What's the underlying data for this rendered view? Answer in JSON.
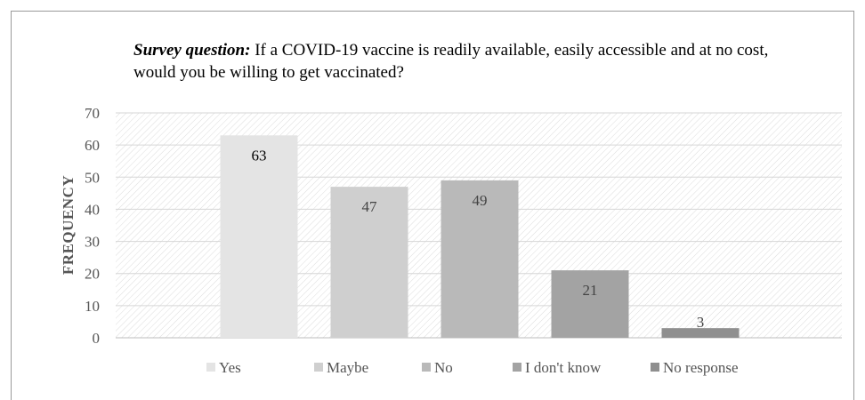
{
  "question": {
    "lead": "Survey question:",
    "text": " If a COVID-19 vaccine is readily available, easily accessible and at no cost, would you be willing to get vaccinated?"
  },
  "chart_data": {
    "type": "bar",
    "categories": [
      "Yes",
      "Maybe",
      "No",
      "I don't know",
      "No response"
    ],
    "values": [
      63,
      47,
      49,
      21,
      3
    ],
    "ylabel": "FREQUENCY",
    "xlabel": "",
    "ylim": [
      0,
      70
    ],
    "yticks": [
      0,
      10,
      20,
      30,
      40,
      50,
      60,
      70
    ],
    "grid": true,
    "legend": "bottom",
    "colors": [
      "#e4e4e4",
      "#cfcfcf",
      "#b9b9b9",
      "#a3a3a3",
      "#8f8f8f"
    ],
    "label_colors": [
      "#000000",
      "#444444",
      "#444444",
      "#444444",
      "#444444"
    ]
  }
}
